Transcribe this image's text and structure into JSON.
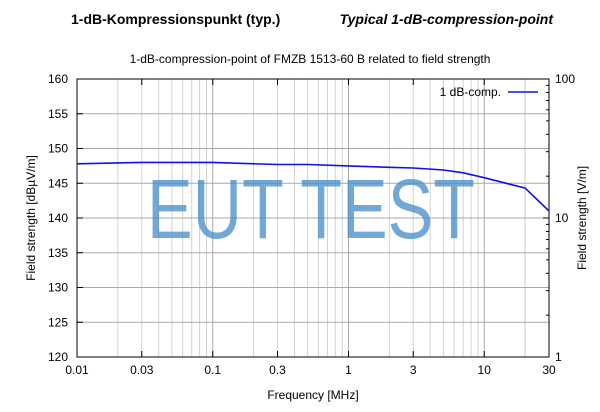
{
  "header": {
    "left_title": "1-dB-Kompressionspunkt (typ.)",
    "right_title": "Typical 1-dB-compression-point"
  },
  "watermark": {
    "text": "EUT TEST",
    "color": "#4a8fc9"
  },
  "chart_data": {
    "type": "line",
    "title": "1-dB-compression-point of FMZB 1513-60 B related to field strength",
    "xlabel": "Frequency [MHz]",
    "ylabel": "Field strength [dBµV/m]",
    "y2label": "Field strength [V/m]",
    "xscale": "log",
    "xlim": [
      0.01,
      30
    ],
    "ylim": [
      120,
      160
    ],
    "y2scale": "log",
    "y2lim": [
      1,
      100
    ],
    "grid": true,
    "legend_position": "top-right",
    "x_ticks": [
      "0.01",
      "0.03",
      "0.1",
      "0.3",
      "1",
      "3",
      "10",
      "30"
    ],
    "y_ticks": [
      "120",
      "125",
      "130",
      "135",
      "140",
      "145",
      "150",
      "155",
      "160"
    ],
    "y2_ticks": [
      "1",
      "10",
      "100"
    ],
    "series": [
      {
        "name": "1 dB-comp.",
        "color": "#1010f0",
        "x": [
          0.01,
          0.03,
          0.1,
          0.3,
          0.5,
          1,
          2,
          3,
          5,
          7,
          10,
          20,
          30
        ],
        "y": [
          147.8,
          148.0,
          148.0,
          147.7,
          147.7,
          147.5,
          147.3,
          147.2,
          146.9,
          146.5,
          145.8,
          144.3,
          141.0
        ]
      }
    ]
  }
}
